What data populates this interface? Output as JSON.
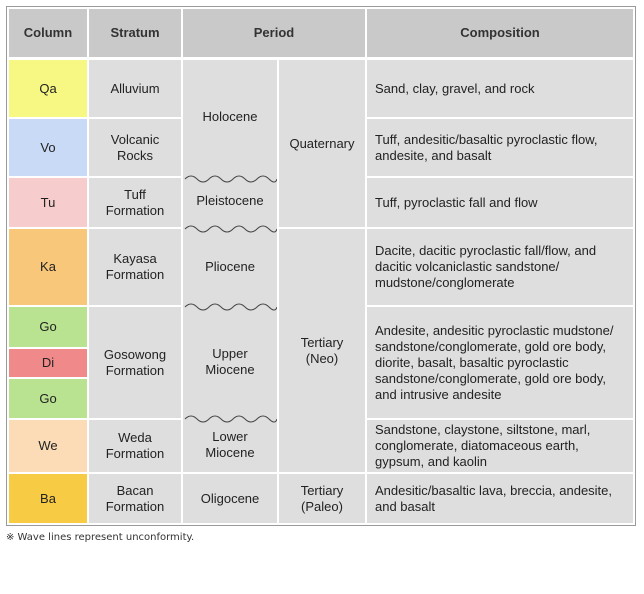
{
  "headers": {
    "column": "Column",
    "stratum": "Stratum",
    "period": "Period",
    "composition": "Composition"
  },
  "colors": {
    "qa": "#f7f783",
    "vo": "#c9daf7",
    "tu": "#f7cccc",
    "ka": "#f9c77a",
    "go": "#b9e390",
    "di": "#f08a8a",
    "we": "#fbdcb6",
    "ba": "#f7cb43"
  },
  "columns": {
    "qa": "Qa",
    "vo": "Vo",
    "tu": "Tu",
    "ka": "Ka",
    "go1": "Go",
    "di": "Di",
    "go2": "Go",
    "we": "We",
    "ba": "Ba"
  },
  "strata": {
    "alluvium": "Alluvium",
    "volcanic": "Volcanic Rocks",
    "tuff": "Tuff Formation",
    "kayasa": "Kayasa Formation",
    "gosowong": "Gosowong Formation",
    "weda": "Weda Formation",
    "bacan": "Bacan Formation"
  },
  "epochs": {
    "holocene": "Holocene",
    "pleistocene": "Pleistocene",
    "pliocene": "Pliocene",
    "upper_miocene": "Upper Miocene",
    "lower_miocene": "Lower Miocene",
    "oligocene": "Oligocene"
  },
  "periods": {
    "quaternary": "Quaternary",
    "tertiary_neo": "Tertiary (Neo)",
    "tertiary_paleo": "Tertiary (Paleo)"
  },
  "composition": {
    "qa": "Sand, clay, gravel, and rock",
    "vo": "Tuff, andesitic/basaltic pyroclastic flow, andesite, and basalt",
    "tu": "Tuff, pyroclastic fall and flow",
    "ka": "Dacite, dacitic pyroclastic fall/flow, and dacitic volcaniclastic sandstone/ mudstone/conglomerate",
    "go": "Andesite, andesitic pyroclastic mudstone/ sandstone/conglomerate, gold ore body, diorite, basalt, basaltic pyroclastic sandstone/conglomerate, gold ore body, and intrusive andesite",
    "we": "Sandstone, claystone, siltstone, marl, conglomerate, diatomaceous earth, gypsum, and kaolin",
    "ba": "Andesitic/basaltic lava, breccia, andesite, and basalt"
  },
  "footnote": "※ Wave lines represent unconformity."
}
